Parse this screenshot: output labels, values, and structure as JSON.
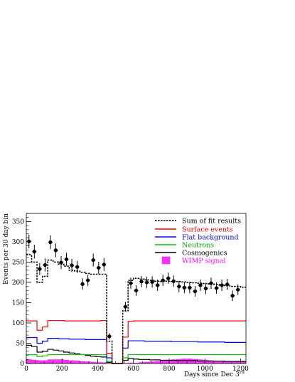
{
  "chart_data": {
    "type": "line",
    "xlabel": "Days since Dec 3",
    "xlabel_superscript": "rd",
    "ylabel": "Events per 30 day bin",
    "xlim": [
      0,
      1230
    ],
    "ylim": [
      0,
      370
    ],
    "x_ticks": [
      "0",
      "200",
      "400",
      "600",
      "800",
      "1000",
      "1200"
    ],
    "x_tick_values": [
      0,
      200,
      400,
      600,
      800,
      1000,
      1200
    ],
    "y_ticks": [
      "0",
      "50",
      "100",
      "150",
      "200",
      "250",
      "300",
      "350"
    ],
    "y_tick_values": [
      0,
      50,
      100,
      150,
      200,
      250,
      300,
      350
    ],
    "grid": false,
    "legend_position": "top-right",
    "legend": [
      {
        "label": "Sum of fit results",
        "color": "#000000",
        "style": "dashed",
        "series": "sum"
      },
      {
        "label": "Surface events",
        "color": "#ff0000",
        "style": "solid",
        "series": "surface"
      },
      {
        "label": "Flat background",
        "color": "#0000ff",
        "style": "solid",
        "series": "flat"
      },
      {
        "label": "Neutrons",
        "color": "#00cc00",
        "style": "solid",
        "series": "neutrons"
      },
      {
        "label": "Cosmogenics",
        "color": "#000000",
        "style": "solid",
        "series": "cosmogenics"
      },
      {
        "label": "WIMP signal",
        "color": "#ff00ff",
        "style": "hatched-fill",
        "series": "wimp"
      }
    ],
    "bin_edges": [
      0,
      30,
      60,
      90,
      120,
      150,
      180,
      210,
      240,
      270,
      300,
      330,
      360,
      390,
      420,
      450,
      480,
      510,
      540,
      570,
      600,
      630,
      660,
      690,
      720,
      750,
      780,
      810,
      840,
      870,
      900,
      930,
      960,
      990,
      1020,
      1050,
      1080,
      1110,
      1140,
      1170,
      1200,
      1230
    ],
    "series": [
      {
        "key": "sum",
        "values": [
          268,
          250,
          200,
          215,
          255,
          250,
          245,
          240,
          230,
          228,
          225,
          222,
          220,
          220,
          220,
          55,
          0,
          0,
          130,
          205,
          210,
          208,
          206,
          205,
          203,
          202,
          203,
          202,
          202,
          201,
          200,
          199,
          198,
          197,
          196,
          195,
          193,
          192,
          190,
          190,
          188
        ]
      },
      {
        "key": "surface",
        "values": [
          105,
          105,
          82,
          90,
          106,
          106,
          106,
          105,
          105,
          105,
          105,
          105,
          105,
          105,
          106,
          25,
          0,
          0,
          65,
          104,
          105,
          105,
          105,
          105,
          105,
          105,
          105,
          105,
          105,
          105,
          105,
          105,
          105,
          105,
          105,
          105,
          105,
          105,
          105,
          105,
          105
        ]
      },
      {
        "key": "flat",
        "values": [
          64,
          64,
          50,
          55,
          62,
          62,
          61,
          61,
          60,
          60,
          60,
          59,
          59,
          59,
          59,
          14,
          0,
          0,
          38,
          56,
          56,
          56,
          55,
          55,
          55,
          55,
          55,
          54,
          54,
          54,
          54,
          54,
          53,
          53,
          53,
          53,
          53,
          52,
          52,
          52,
          52
        ]
      },
      {
        "key": "neutrons",
        "values": [
          22,
          22,
          17,
          19,
          22,
          22,
          22,
          22,
          22,
          22,
          22,
          22,
          22,
          22,
          22,
          5,
          0,
          0,
          14,
          22,
          22,
          22,
          22,
          22,
          22,
          22,
          22,
          22,
          22,
          22,
          22,
          22,
          22,
          22,
          22,
          22,
          22,
          22,
          22,
          22,
          22
        ]
      },
      {
        "key": "cosmogenics",
        "values": [
          45,
          42,
          28,
          30,
          35,
          33,
          31,
          28,
          26,
          24,
          22,
          20,
          18,
          17,
          16,
          3,
          0,
          0,
          8,
          12,
          11,
          10,
          10,
          9,
          9,
          8,
          8,
          8,
          7,
          7,
          7,
          7,
          6,
          6,
          6,
          6,
          6,
          5,
          5,
          5,
          5
        ]
      },
      {
        "key": "wimp",
        "values": [
          10,
          9,
          8,
          8,
          10,
          10,
          10,
          9,
          8,
          7,
          6,
          5,
          4,
          3,
          3,
          1,
          0,
          0,
          1,
          2,
          2,
          3,
          4,
          5,
          6,
          8,
          9,
          10,
          11,
          12,
          12,
          11,
          10,
          9,
          8,
          6,
          5,
          4,
          4,
          5,
          6
        ]
      }
    ],
    "data_points": [
      {
        "x": 15,
        "y": 301,
        "err": 17
      },
      {
        "x": 45,
        "y": 276,
        "err": 17
      },
      {
        "x": 75,
        "y": 233,
        "err": 15
      },
      {
        "x": 105,
        "y": 243,
        "err": 16
      },
      {
        "x": 135,
        "y": 299,
        "err": 17
      },
      {
        "x": 165,
        "y": 279,
        "err": 17
      },
      {
        "x": 195,
        "y": 249,
        "err": 16
      },
      {
        "x": 225,
        "y": 257,
        "err": 16
      },
      {
        "x": 255,
        "y": 242,
        "err": 16
      },
      {
        "x": 285,
        "y": 238,
        "err": 15
      },
      {
        "x": 315,
        "y": 196,
        "err": 14
      },
      {
        "x": 345,
        "y": 205,
        "err": 14
      },
      {
        "x": 375,
        "y": 255,
        "err": 16
      },
      {
        "x": 405,
        "y": 236,
        "err": 15
      },
      {
        "x": 435,
        "y": 244,
        "err": 16
      },
      {
        "x": 465,
        "y": 67,
        "err": 8
      },
      {
        "x": 555,
        "y": 140,
        "err": 12
      },
      {
        "x": 585,
        "y": 198,
        "err": 14
      },
      {
        "x": 615,
        "y": 180,
        "err": 13
      },
      {
        "x": 645,
        "y": 202,
        "err": 14
      },
      {
        "x": 675,
        "y": 200,
        "err": 14
      },
      {
        "x": 705,
        "y": 201,
        "err": 14
      },
      {
        "x": 735,
        "y": 193,
        "err": 14
      },
      {
        "x": 765,
        "y": 205,
        "err": 14
      },
      {
        "x": 795,
        "y": 210,
        "err": 14
      },
      {
        "x": 825,
        "y": 203,
        "err": 14
      },
      {
        "x": 855,
        "y": 190,
        "err": 14
      },
      {
        "x": 885,
        "y": 187,
        "err": 14
      },
      {
        "x": 915,
        "y": 187,
        "err": 14
      },
      {
        "x": 945,
        "y": 178,
        "err": 13
      },
      {
        "x": 975,
        "y": 193,
        "err": 14
      },
      {
        "x": 1005,
        "y": 185,
        "err": 14
      },
      {
        "x": 1035,
        "y": 198,
        "err": 14
      },
      {
        "x": 1065,
        "y": 186,
        "err": 14
      },
      {
        "x": 1095,
        "y": 193,
        "err": 14
      },
      {
        "x": 1125,
        "y": 195,
        "err": 14
      },
      {
        "x": 1155,
        "y": 167,
        "err": 13
      },
      {
        "x": 1185,
        "y": 182,
        "err": 13
      }
    ]
  }
}
